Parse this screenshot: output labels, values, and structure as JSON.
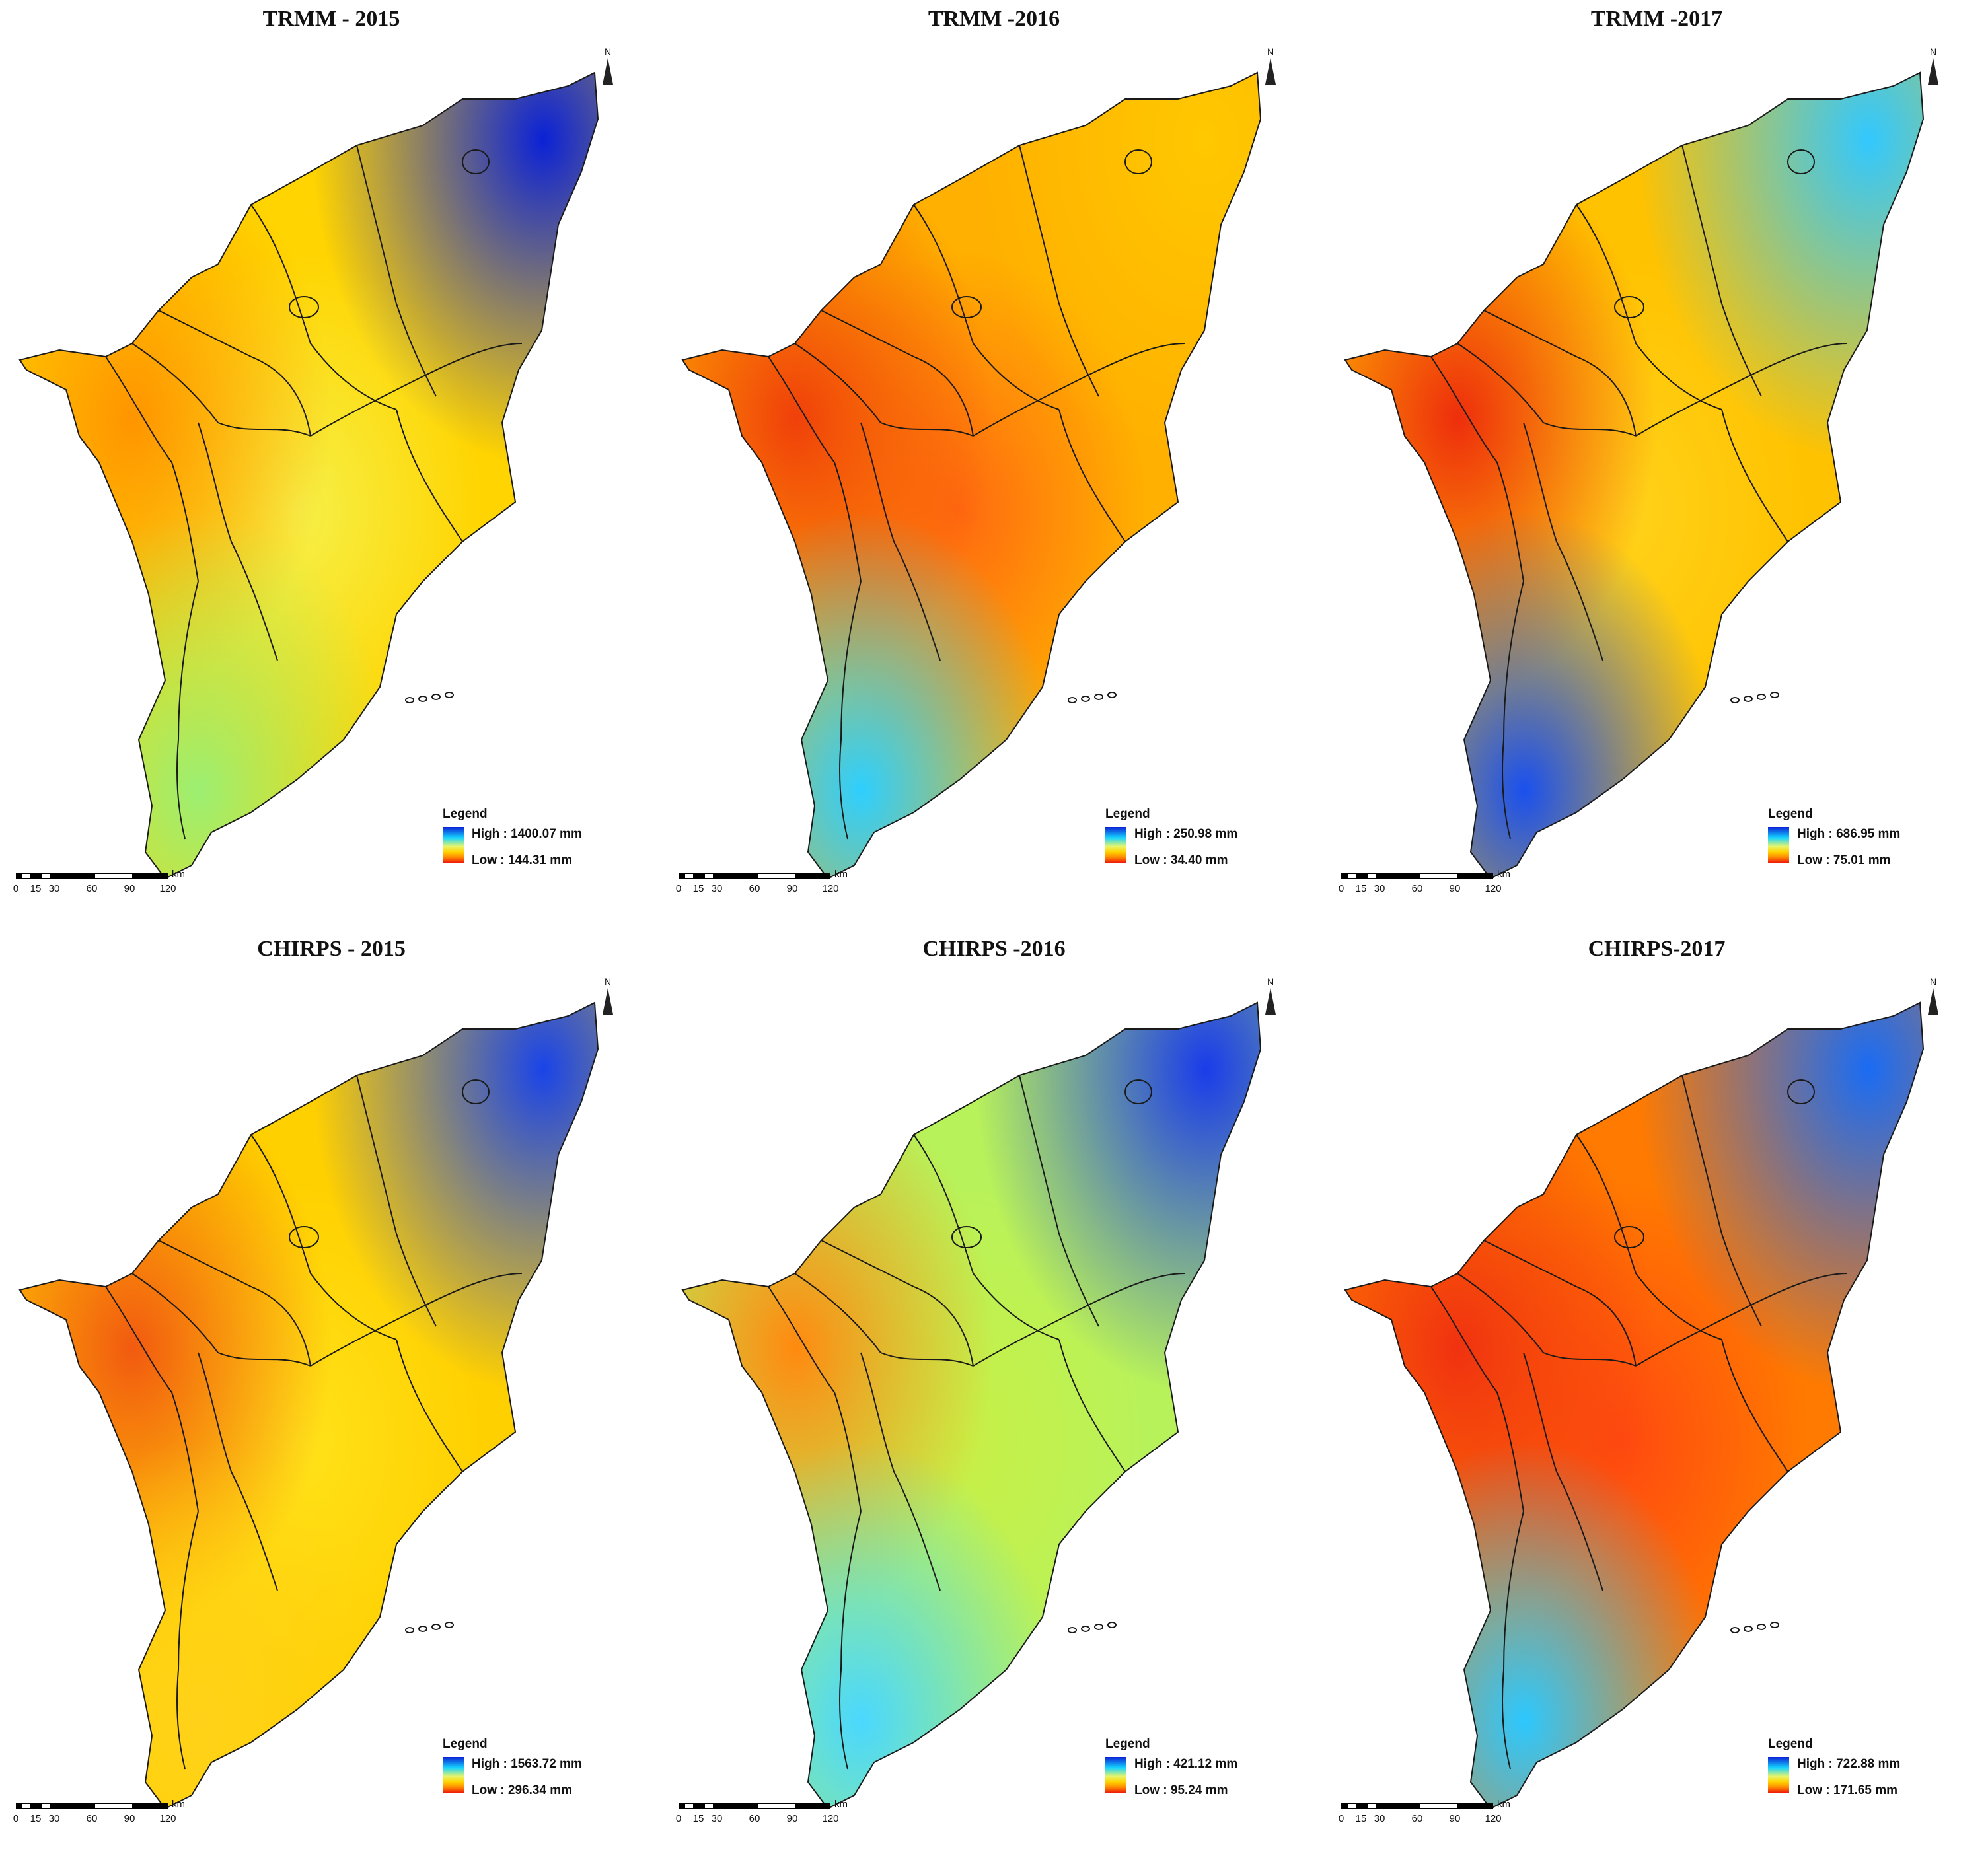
{
  "colors": {
    "high": "#0b22d6",
    "mid_high": "#15d4ff",
    "mid": "#e8f56a",
    "mid_low": "#ffd300",
    "low_mid": "#ff8a00",
    "low": "#ee1b0b"
  },
  "north_label": "N",
  "scale_unit": "km",
  "scale_ticks": [
    "0",
    "15",
    "30",
    "60",
    "90",
    "120"
  ],
  "legend_title": "Legend",
  "panels": [
    {
      "title": "TRMM - 2015",
      "high": "High : 1400.07 mm",
      "low": "Low : 144.31 mm",
      "base": "#ffd400",
      "northeast": "#0b22d6",
      "west": "#ff9500",
      "south": "#9cef72",
      "center": "#f6f048"
    },
    {
      "title": "TRMM -2016",
      "high": "High : 250.98 mm",
      "low": "Low : 34.40 mm",
      "base": "#ffb000",
      "northeast": "#ffc800",
      "west": "#f0400a",
      "south": "#2ecfff",
      "center": "#ff6a10"
    },
    {
      "title": "TRMM -2017",
      "high": "High : 686.95 mm",
      "low": "Low : 75.01 mm",
      "base": "#ffc200",
      "northeast": "#32c8ff",
      "west": "#ee2e0c",
      "south": "#1a50ee",
      "center": "#ffd21a"
    },
    {
      "title": "CHIRPS - 2015",
      "high": "High : 1563.72 mm",
      "low": "Low : 296.34 mm",
      "base": "#ffd000",
      "northeast": "#1a44e8",
      "west": "#f25a10",
      "south": "#ffd21a",
      "center": "#ffe21a"
    },
    {
      "title": "CHIRPS -2016",
      "high": "High : 421.12 mm",
      "low": "Low : 95.24 mm",
      "base": "#b8f25a",
      "northeast": "#1a3cea",
      "west": "#ff8a10",
      "south": "#4ad8ff",
      "center": "#c8f046"
    },
    {
      "title": "CHIRPS-2017",
      "high": "High : 722.88 mm",
      "low": "Low : 171.65 mm",
      "base": "#ff7a00",
      "northeast": "#1a6cf4",
      "west": "#f03210",
      "south": "#2cc8ff",
      "center": "#ff4a10"
    }
  ]
}
